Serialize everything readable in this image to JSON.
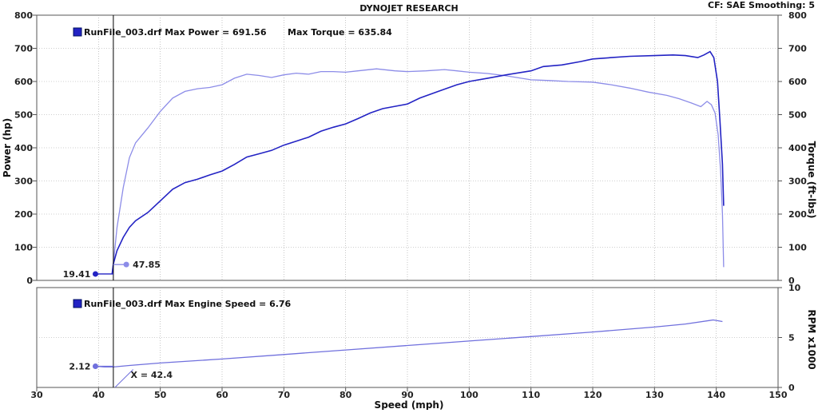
{
  "header": {
    "title": "DYNOJET RESEARCH",
    "info": "CF: SAE  Smoothing: 5"
  },
  "colors": {
    "power": "#2323c4",
    "torque": "#8c8ce8",
    "rpm": "#7070dd",
    "frame": "#555555",
    "grid": "#a0a0a0",
    "cursor": "#000000"
  },
  "chart_data": [
    {
      "type": "line",
      "name": "power-torque",
      "legend_text": "RunFile_003.drf Max Power = 691.56",
      "legend_extra": "Max Torque = 635.84",
      "xlabel": "Speed (mph)",
      "ylabel": "Power (hp)",
      "y2label": "Torque (ft-lbs)",
      "xlim": [
        30,
        150
      ],
      "ylim": [
        0,
        800
      ],
      "y2lim": [
        0,
        800
      ],
      "xticks": [
        30,
        40,
        50,
        60,
        70,
        80,
        90,
        100,
        110,
        120,
        130,
        140,
        150
      ],
      "yticks": [
        0,
        100,
        200,
        300,
        400,
        500,
        600,
        700,
        800
      ],
      "y2ticks": [
        0,
        100,
        200,
        300,
        400,
        500,
        600,
        700,
        800
      ],
      "grid": true,
      "series": [
        {
          "key": "power",
          "points": [
            [
              42.2,
              19
            ],
            [
              42.4,
              50
            ],
            [
              43,
              90
            ],
            [
              44,
              130
            ],
            [
              45,
              160
            ],
            [
              46,
              180
            ],
            [
              48,
              205
            ],
            [
              50,
              240
            ],
            [
              52,
              275
            ],
            [
              54,
              295
            ],
            [
              56,
              305
            ],
            [
              58,
              318
            ],
            [
              60,
              330
            ],
            [
              62,
              350
            ],
            [
              64,
              372
            ],
            [
              66,
              382
            ],
            [
              68,
              392
            ],
            [
              70,
              408
            ],
            [
              72,
              420
            ],
            [
              74,
              432
            ],
            [
              76,
              450
            ],
            [
              78,
              462
            ],
            [
              80,
              472
            ],
            [
              82,
              488
            ],
            [
              84,
              505
            ],
            [
              86,
              518
            ],
            [
              88,
              525
            ],
            [
              90,
              532
            ],
            [
              92,
              550
            ],
            [
              95,
              570
            ],
            [
              98,
              590
            ],
            [
              100,
              600
            ],
            [
              103,
              610
            ],
            [
              106,
              620
            ],
            [
              110,
              632
            ],
            [
              112,
              645
            ],
            [
              115,
              650
            ],
            [
              118,
              660
            ],
            [
              120,
              668
            ],
            [
              123,
              672
            ],
            [
              126,
              676
            ],
            [
              130,
              678
            ],
            [
              133,
              680
            ],
            [
              135,
              678
            ],
            [
              137,
              672
            ],
            [
              138,
              680
            ],
            [
              139,
              690
            ],
            [
              139.6,
              672
            ],
            [
              140.2,
              600
            ],
            [
              140.6,
              480
            ],
            [
              141,
              350
            ],
            [
              141.2,
              225
            ]
          ]
        },
        {
          "key": "torque",
          "points": [
            [
              42.2,
              19
            ],
            [
              42.5,
              70
            ],
            [
              43,
              160
            ],
            [
              44,
              280
            ],
            [
              45,
              370
            ],
            [
              46,
              415
            ],
            [
              48,
              460
            ],
            [
              50,
              510
            ],
            [
              52,
              550
            ],
            [
              54,
              570
            ],
            [
              56,
              578
            ],
            [
              58,
              582
            ],
            [
              60,
              590
            ],
            [
              62,
              610
            ],
            [
              64,
              622
            ],
            [
              66,
              618
            ],
            [
              68,
              612
            ],
            [
              70,
              620
            ],
            [
              72,
              625
            ],
            [
              74,
              622
            ],
            [
              76,
              630
            ],
            [
              78,
              630
            ],
            [
              80,
              628
            ],
            [
              82,
              632
            ],
            [
              85,
              638
            ],
            [
              88,
              632
            ],
            [
              90,
              630
            ],
            [
              93,
              632
            ],
            [
              96,
              636
            ],
            [
              98,
              632
            ],
            [
              100,
              628
            ],
            [
              103,
              624
            ],
            [
              106,
              617
            ],
            [
              110,
              605
            ],
            [
              113,
              603
            ],
            [
              116,
              600
            ],
            [
              120,
              598
            ],
            [
              123,
              590
            ],
            [
              126,
              580
            ],
            [
              129,
              568
            ],
            [
              132,
              558
            ],
            [
              134,
              548
            ],
            [
              136,
              535
            ],
            [
              137.5,
              524
            ],
            [
              138.5,
              540
            ],
            [
              139.2,
              530
            ],
            [
              139.8,
              505
            ],
            [
              140.3,
              440
            ],
            [
              140.7,
              330
            ],
            [
              141,
              200
            ],
            [
              141.2,
              40
            ]
          ]
        }
      ],
      "markers": [
        {
          "x": 39.5,
          "y": 19.41,
          "label": "19.41"
        },
        {
          "x": 44.5,
          "y": 47.85,
          "label": "47.85"
        }
      ]
    },
    {
      "type": "line",
      "name": "engine-speed",
      "legend_text": "RunFile_003.drf Max Engine Speed = 6.76",
      "xlabel": "Speed (mph)",
      "y2label": "RPM x1000",
      "xlim": [
        30,
        150
      ],
      "y2lim": [
        0,
        10
      ],
      "y2ticks": [
        0,
        5,
        10
      ],
      "grid": true,
      "series": [
        {
          "key": "rpm",
          "points": [
            [
              39.5,
              2.12
            ],
            [
              41,
              2.05
            ],
            [
              42.4,
              2.05
            ],
            [
              45,
              2.2
            ],
            [
              50,
              2.45
            ],
            [
              60,
              2.85
            ],
            [
              70,
              3.3
            ],
            [
              80,
              3.75
            ],
            [
              90,
              4.2
            ],
            [
              100,
              4.65
            ],
            [
              110,
              5.1
            ],
            [
              120,
              5.55
            ],
            [
              130,
              6.05
            ],
            [
              135,
              6.35
            ],
            [
              139.5,
              6.76
            ],
            [
              141,
              6.6
            ]
          ]
        }
      ],
      "markers": [
        {
          "x": 39.5,
          "y": 2.12,
          "label": "2.12"
        }
      ],
      "cursor_label": "X = 42.4",
      "cursor_x": 42.4
    }
  ]
}
